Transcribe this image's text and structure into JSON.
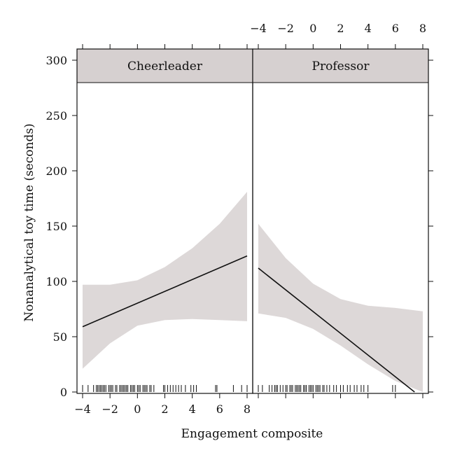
{
  "chart_data": {
    "type": "line",
    "title": "",
    "xlabel": "Engagement composite",
    "ylabel": "Nonanalytical toy time (seconds)",
    "xlim": [
      -4.2,
      8.4
    ],
    "ylim": [
      0,
      300
    ],
    "x_ticks": [
      -4,
      -2,
      0,
      2,
      4,
      6,
      8
    ],
    "x_tick_labels": [
      "−4",
      "−2",
      "0",
      "2",
      "4",
      "6",
      "8"
    ],
    "y_ticks": [
      0,
      50,
      100,
      150,
      200,
      250,
      300
    ],
    "grid": false,
    "legend": "none",
    "colors": {
      "band": "#ddd8d8",
      "strip": "#d6d0d0",
      "line": "#111111"
    },
    "panels": [
      {
        "name": "Cheerleader",
        "line": {
          "x": [
            -4.0,
            8.0
          ],
          "y": [
            59,
            123
          ]
        },
        "band": {
          "x": [
            -4.0,
            -2.0,
            0.0,
            2.0,
            4.0,
            6.0,
            8.0
          ],
          "upper": [
            97,
            97,
            101,
            113,
            130,
            152,
            181
          ],
          "lower": [
            21,
            44,
            60,
            65,
            66,
            65,
            64
          ]
        },
        "rug": [
          -4.0,
          -3.6,
          -3.2,
          -3.0,
          -2.9,
          -2.8,
          -2.7,
          -2.6,
          -2.5,
          -2.4,
          -2.3,
          -2.1,
          -2.0,
          -1.9,
          -1.8,
          -1.6,
          -1.5,
          -1.3,
          -1.2,
          -1.1,
          -1.0,
          -0.9,
          -0.8,
          -0.7,
          -0.5,
          -0.4,
          -0.3,
          -0.2,
          0.0,
          0.1,
          0.2,
          0.4,
          0.5,
          0.6,
          0.7,
          0.9,
          1.0,
          1.2,
          1.9,
          2.0,
          2.2,
          2.4,
          2.6,
          2.8,
          3.0,
          3.2,
          3.5,
          3.9,
          4.1,
          4.3,
          5.7,
          5.8,
          7.0,
          7.6,
          8.0
        ]
      },
      {
        "name": "Professor",
        "line": {
          "x": [
            -4.0,
            7.4
          ],
          "y": [
            112,
            0
          ]
        },
        "band": {
          "x": [
            -4.0,
            -2.0,
            0.0,
            2.0,
            4.0,
            6.0,
            8.0
          ],
          "upper": [
            152,
            121,
            98,
            84,
            78,
            76,
            73
          ],
          "lower": [
            71,
            67,
            57,
            42,
            25,
            10,
            0
          ]
        },
        "rug": [
          -4.0,
          -3.7,
          -3.2,
          -3.0,
          -2.8,
          -2.7,
          -2.6,
          -2.4,
          -2.2,
          -2.0,
          -1.9,
          -1.7,
          -1.6,
          -1.5,
          -1.3,
          -1.2,
          -1.1,
          -1.0,
          -0.9,
          -0.7,
          -0.6,
          -0.5,
          -0.3,
          -0.2,
          -0.1,
          0.0,
          0.2,
          0.3,
          0.4,
          0.5,
          0.7,
          0.8,
          1.0,
          1.2,
          1.5,
          1.7,
          2.0,
          2.2,
          2.5,
          2.7,
          3.0,
          3.2,
          3.5,
          3.7,
          4.0,
          5.8,
          6.0
        ]
      }
    ]
  }
}
